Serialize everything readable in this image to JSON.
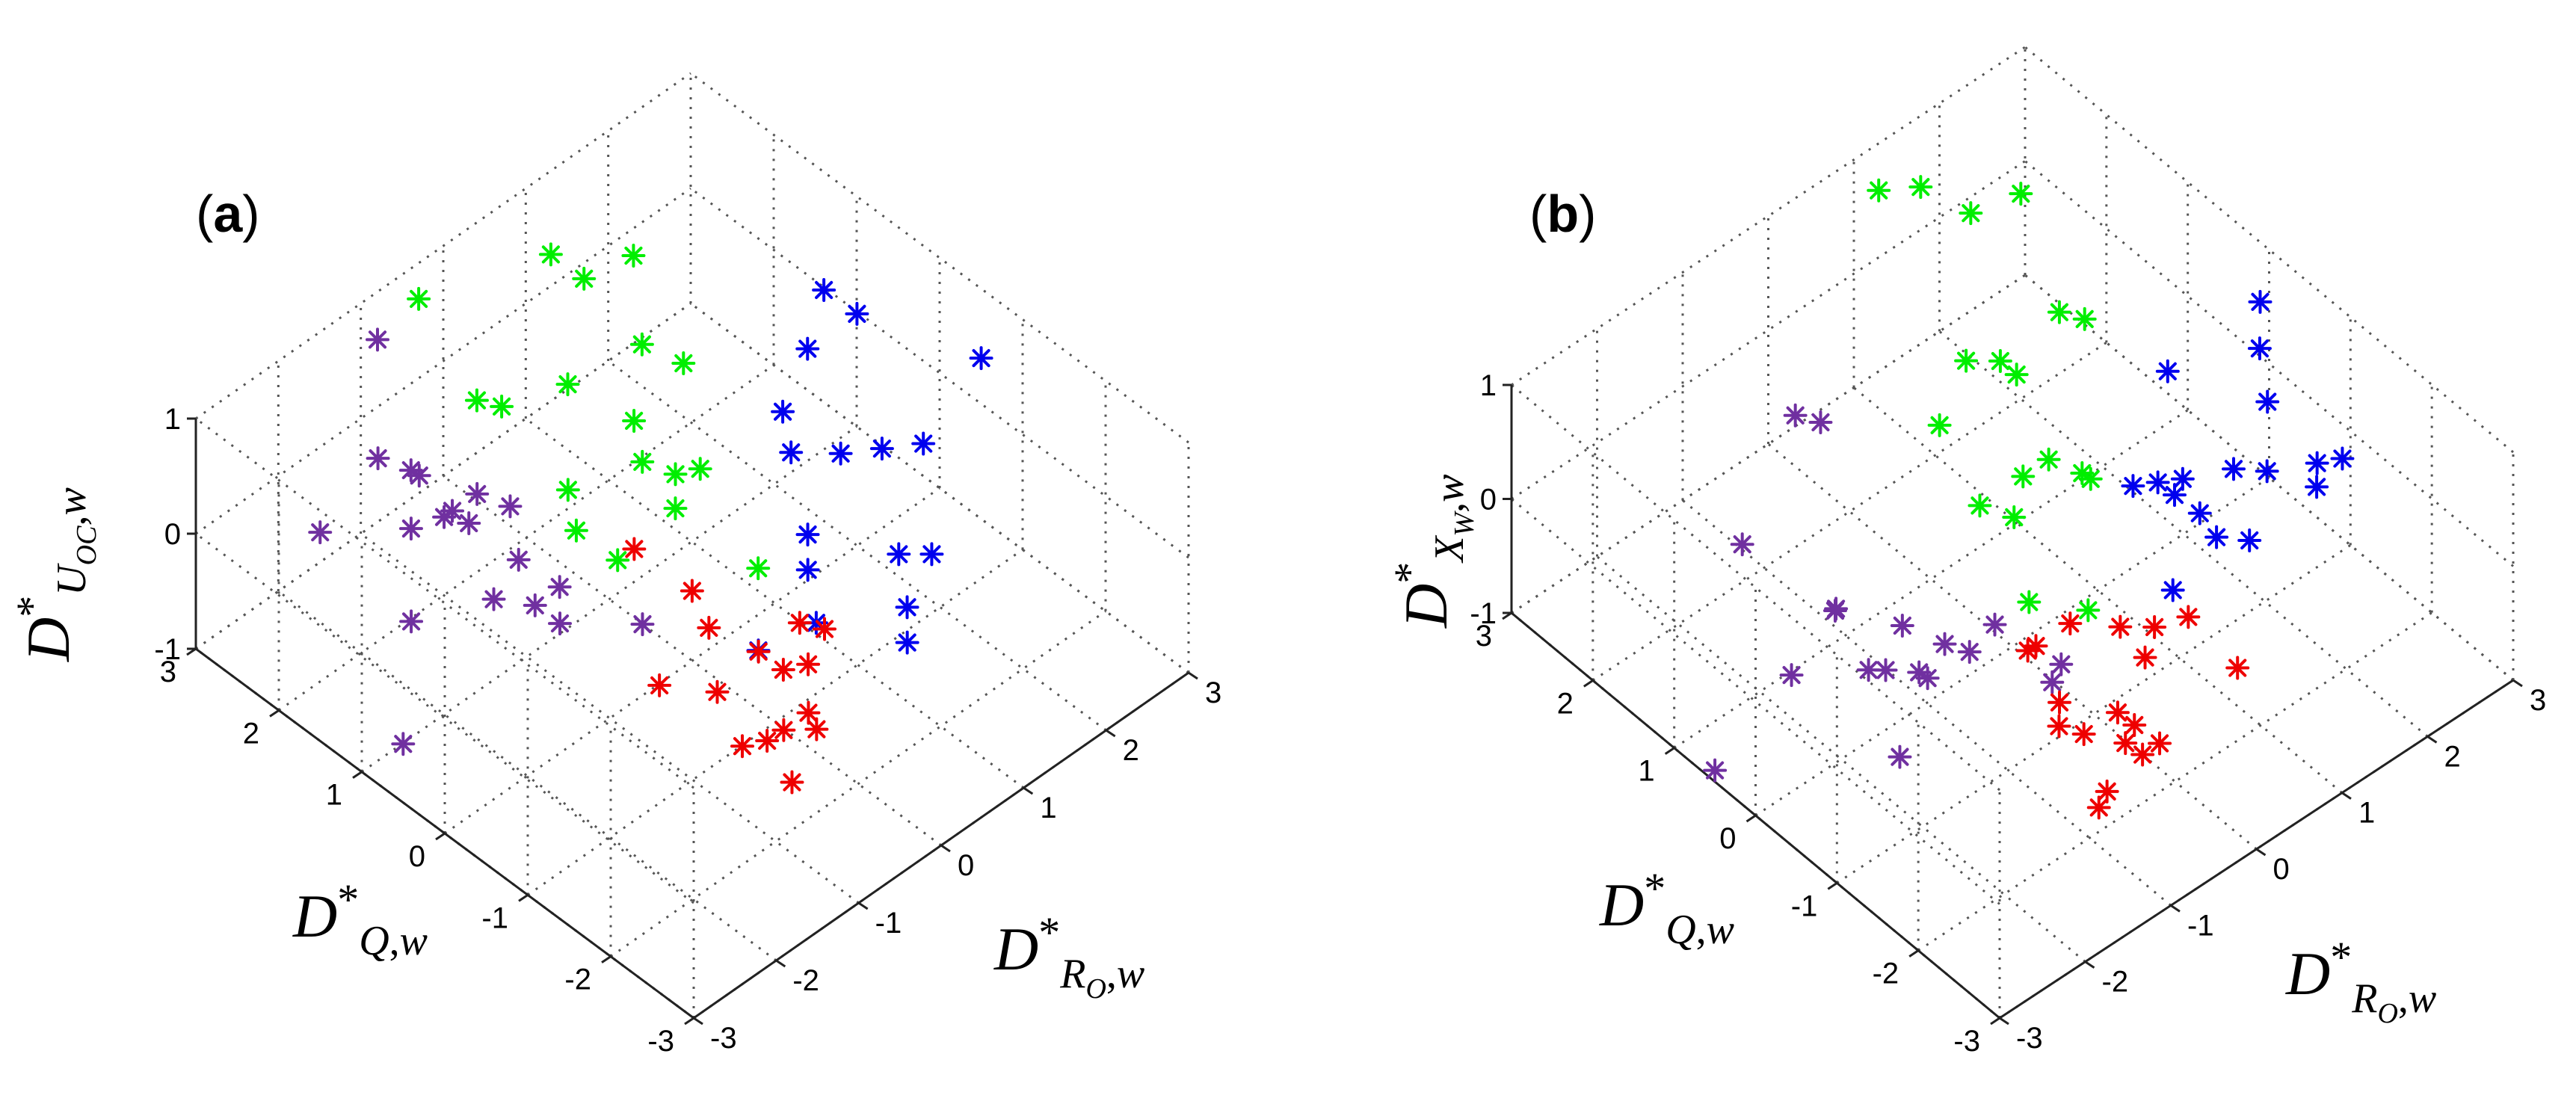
{
  "chart_data": [
    {
      "type": "scatter",
      "panel_label": "a",
      "xlabel": "D*_{R_O,w}",
      "ylabel": "D*_{Q,w}",
      "zlabel": "D*_{U_OC,w}",
      "xlim": [
        -3,
        3
      ],
      "ylim": [
        -3,
        3
      ],
      "zlim": [
        -1,
        1
      ],
      "x_ticks": [
        "-3",
        "-2",
        "-1",
        "0",
        "1",
        "2",
        "3"
      ],
      "y_ticks": [
        "-3",
        "-2",
        "-1",
        "0",
        "1",
        "2",
        "3"
      ],
      "z_ticks": [
        "-1",
        "0",
        "1"
      ],
      "grid": true,
      "marker": "*",
      "series": [
        {
          "name": "purple",
          "color": "#7030a0",
          "points": [
            [
              -2.6,
              1.9,
              0.4
            ],
            [
              -1.2,
              2.6,
              1.0
            ],
            [
              -2.1,
              1.7,
              0.9
            ],
            [
              -1.8,
              1.6,
              0.7
            ],
            [
              -1.6,
              1.7,
              0.5
            ],
            [
              -2.0,
              1.4,
              0.4
            ],
            [
              -1.6,
              1.4,
              0.3
            ],
            [
              -1.4,
              1.3,
              0.2
            ],
            [
              -1.2,
              1.4,
              0.3
            ],
            [
              -1.4,
              1.5,
              0.2
            ],
            [
              -1.0,
              1.2,
              0.2
            ],
            [
              -2.2,
              1.2,
              -0.2
            ],
            [
              -1.3,
              0.8,
              0.1
            ],
            [
              -1.4,
              1.0,
              -0.3
            ],
            [
              -1.0,
              0.9,
              -0.5
            ],
            [
              -0.9,
              0.7,
              -0.6
            ],
            [
              -2.7,
              0.8,
              -0.8
            ],
            [
              -0.4,
              1.2,
              -0.8
            ],
            [
              -0.1,
              0.5,
              -0.9
            ]
          ]
        },
        {
          "name": "green",
          "color": "#00ee00",
          "points": [
            [
              -0.6,
              2.7,
              1.0
            ],
            [
              0.6,
              2.3,
              1.0
            ],
            [
              0.7,
              2.0,
              0.9
            ],
            [
              1.3,
              2.0,
              0.8
            ],
            [
              -0.8,
              1.8,
              0.7
            ],
            [
              -0.6,
              1.7,
              0.6
            ],
            [
              0.8,
              1.4,
              0.6
            ],
            [
              0.0,
              1.5,
              0.6
            ],
            [
              0.9,
              1.0,
              0.6
            ],
            [
              0.3,
              1.0,
              0.4
            ],
            [
              0.2,
              0.8,
              0.2
            ],
            [
              0.4,
              0.6,
              0.1
            ],
            [
              0.6,
              0.5,
              0.1
            ],
            [
              -0.5,
              1.0,
              0.2
            ],
            [
              -0.5,
              0.9,
              -0.1
            ],
            [
              0.9,
              0.1,
              -0.7
            ],
            [
              -0.2,
              0.7,
              -0.4
            ],
            [
              0.5,
              0.7,
              -0.3
            ]
          ]
        },
        {
          "name": "blue",
          "color": "#0000ee",
          "points": [
            [
              2.2,
              0.6,
              0.8
            ],
            [
              1.7,
              0.3,
              0.7
            ],
            [
              2.4,
              0.4,
              0.6
            ],
            [
              1.5,
              0.4,
              0.2
            ],
            [
              2.9,
              -0.6,
              0.5
            ],
            [
              1.5,
              0.3,
              -0.1
            ],
            [
              1.8,
              0.0,
              -0.1
            ],
            [
              2.1,
              -0.2,
              -0.1
            ],
            [
              2.4,
              -0.4,
              -0.1
            ],
            [
              1.3,
              -0.1,
              -0.5
            ],
            [
              1.8,
              -0.7,
              -0.6
            ],
            [
              2.2,
              -0.7,
              -0.8
            ],
            [
              1.1,
              -0.3,
              -0.6
            ],
            [
              0.9,
              -0.6,
              -0.8
            ],
            [
              1.6,
              -1.0,
              -0.8
            ],
            [
              1.4,
              -1.2,
              -0.9
            ],
            [
              0.5,
              -0.3,
              -1.0
            ]
          ]
        },
        {
          "name": "red",
          "color": "#ee0000",
          "points": [
            [
              -0.1,
              0.6,
              -0.3
            ],
            [
              0.2,
              0.2,
              -0.6
            ],
            [
              -0.2,
              -0.4,
              -0.4
            ],
            [
              -0.8,
              -0.4,
              -0.6
            ],
            [
              -0.3,
              -0.6,
              -0.8
            ],
            [
              0.2,
              -0.6,
              -0.7
            ],
            [
              0.3,
              -0.8,
              -0.8
            ],
            [
              0.7,
              -0.6,
              -0.7
            ],
            [
              0.9,
              -0.7,
              -0.8
            ],
            [
              0.5,
              -0.9,
              -0.8
            ],
            [
              -0.6,
              -1.2,
              -0.8
            ],
            [
              -0.4,
              -1.3,
              -0.8
            ],
            [
              -0.4,
              -1.5,
              -0.6
            ],
            [
              0.2,
              -1.3,
              -1.0
            ],
            [
              -0.1,
              -1.5,
              -0.6
            ],
            [
              -0.4,
              -1.6,
              -1.0
            ]
          ]
        }
      ]
    },
    {
      "type": "scatter",
      "panel_label": "b",
      "xlabel": "D*_{R_O,w}",
      "ylabel": "D*_{Q,w}",
      "zlabel": "D*_{X_W,w}",
      "xlim": [
        -3,
        3
      ],
      "ylim": [
        -3,
        3
      ],
      "zlim": [
        -1,
        1
      ],
      "x_ticks": [
        "-3",
        "-2",
        "-1",
        "0",
        "1",
        "2",
        "3"
      ],
      "y_ticks": [
        "-3",
        "-2",
        "-1",
        "0",
        "1",
        "2",
        "3"
      ],
      "z_ticks": [
        "-1",
        "0",
        "1"
      ],
      "grid": true,
      "marker": "*",
      "series": [
        {
          "name": "purple",
          "color": "#7030a0",
          "points": [
            [
              -1.3,
              1.3,
              0.9
            ],
            [
              -1.1,
              1.2,
              0.8
            ],
            [
              -2.3,
              0.9,
              0.5
            ],
            [
              -3.0,
              0.5,
              -0.9
            ],
            [
              -1.3,
              0.8,
              -0.5
            ],
            [
              -1.5,
              0.6,
              -0.3
            ],
            [
              -1.3,
              0.4,
              -0.8
            ],
            [
              -1.1,
              0.4,
              -0.9
            ],
            [
              -1.0,
              0.3,
              -0.5
            ],
            [
              -0.9,
              0.2,
              -0.9
            ],
            [
              -0.8,
              0.2,
              -1.0
            ],
            [
              -0.6,
              0.2,
              -0.8
            ],
            [
              -0.5,
              0.0,
              -0.8
            ],
            [
              -0.3,
              -0.1,
              -0.6
            ],
            [
              -1.6,
              -0.3,
              -1.0
            ],
            [
              -0.2,
              -0.7,
              -0.8
            ],
            [
              0.0,
              -0.6,
              -0.8
            ],
            [
              -2.2,
              0.4,
              -0.4
            ]
          ]
        },
        {
          "name": "green",
          "color": "#00ee00",
          "points": [
            [
              1.1,
              2.8,
              0.8
            ],
            [
              1.4,
              2.6,
              0.8
            ],
            [
              1.7,
              2.3,
              0.6
            ],
            [
              2.0,
              2.0,
              0.8
            ],
            [
              0.6,
              1.2,
              0.5
            ],
            [
              0.1,
              1.0,
              0.3
            ],
            [
              1.0,
              1.2,
              0.3
            ],
            [
              1.0,
              1.0,
              0.3
            ],
            [
              1.5,
              1.0,
              0.6
            ],
            [
              1.7,
              0.9,
              0.5
            ],
            [
              0.6,
              0.5,
              -0.1
            ],
            [
              0.0,
              0.4,
              0.0
            ],
            [
              0.4,
              0.4,
              -0.3
            ],
            [
              0.9,
              0.5,
              -0.1
            ],
            [
              1.1,
              0.3,
              -0.2
            ],
            [
              1.2,
              0.3,
              -0.3
            ],
            [
              0.1,
              -0.1,
              -0.6
            ],
            [
              0.6,
              -0.3,
              -0.8
            ]
          ]
        },
        {
          "name": "blue",
          "color": "#0000ee",
          "points": [
            [
              2.8,
              -0.1,
              0.7
            ],
            [
              2.7,
              -0.2,
              0.4
            ],
            [
              2.1,
              0.3,
              0.2
            ],
            [
              2.6,
              -0.4,
              0.1
            ],
            [
              2.3,
              -0.3,
              -0.4
            ],
            [
              2.5,
              -0.5,
              -0.4
            ],
            [
              3.0,
              -0.9,
              -0.3
            ],
            [
              2.7,
              -0.9,
              -0.4
            ],
            [
              2.8,
              -0.8,
              -0.3
            ],
            [
              1.6,
              0.2,
              -0.5
            ],
            [
              1.8,
              -0.1,
              -0.5
            ],
            [
              1.8,
              -0.2,
              -0.3
            ],
            [
              1.7,
              0.0,
              -0.4
            ],
            [
              2.0,
              -0.2,
              -0.7
            ],
            [
              2.1,
              -0.3,
              -0.9
            ],
            [
              2.2,
              -0.6,
              -0.8
            ],
            [
              1.4,
              -0.5,
              -0.9
            ]
          ]
        },
        {
          "name": "red",
          "color": "#ee0000",
          "points": [
            [
              -0.2,
              -0.4,
              -0.7
            ],
            [
              -0.2,
              -0.5,
              -0.6
            ],
            [
              0.2,
              -0.5,
              -0.6
            ],
            [
              -0.4,
              -1.0,
              -0.7
            ],
            [
              -0.5,
              -1.1,
              -0.8
            ],
            [
              0.5,
              -0.8,
              -0.6
            ],
            [
              0.6,
              -1.0,
              -0.8
            ],
            [
              0.9,
              -0.8,
              -0.8
            ],
            [
              1.2,
              -0.9,
              -0.8
            ],
            [
              -0.4,
              -1.3,
              -0.8
            ],
            [
              -0.1,
              -1.4,
              -0.7
            ],
            [
              -0.2,
              -1.6,
              -0.8
            ],
            [
              0.0,
              -1.6,
              -1.0
            ],
            [
              0.0,
              -1.5,
              -0.8
            ],
            [
              0.2,
              -1.6,
              -1.0
            ],
            [
              -0.7,
              -1.8,
              -1.0
            ],
            [
              -0.7,
              -1.9,
              -0.8
            ],
            [
              1.3,
              -1.4,
              -1.0
            ]
          ]
        }
      ]
    }
  ]
}
